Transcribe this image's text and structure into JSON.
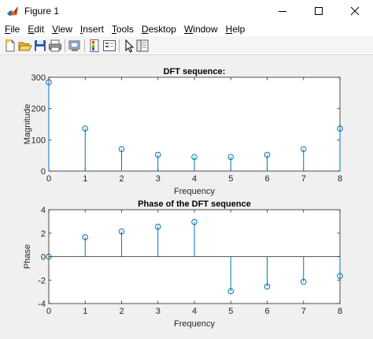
{
  "window": {
    "title": "Figure 1",
    "icon": "matlab-figure-icon"
  },
  "menu": [
    {
      "first": "F",
      "rest": "ile"
    },
    {
      "first": "E",
      "rest": "dit"
    },
    {
      "first": "V",
      "rest": "iew"
    },
    {
      "first": "I",
      "rest": "nsert"
    },
    {
      "first": "T",
      "rest": "ools"
    },
    {
      "first": "D",
      "rest": "esktop"
    },
    {
      "first": "W",
      "rest": "indow"
    },
    {
      "first": "H",
      "rest": "elp"
    }
  ],
  "toolbar": {
    "buttons": [
      "new-figure-icon",
      "open-file-icon",
      "save-icon",
      "print-icon",
      "link-plot-icon",
      "insert-colorbar-icon",
      "insert-legend-icon",
      "edit-plot-icon",
      "property-inspector-icon"
    ]
  },
  "colors": {
    "stem": "#0072BD",
    "axes_bg": "#ffffff",
    "figure_bg": "#f0f0f0"
  },
  "chart_data": [
    {
      "type": "stem",
      "title": "DFT sequence:",
      "xlabel": "Frequency",
      "ylabel": "Magnitude",
      "x": [
        0,
        1,
        2,
        3,
        4,
        5,
        6,
        7,
        8
      ],
      "values": [
        284,
        136,
        70,
        52,
        45,
        45,
        52,
        70,
        136
      ],
      "xlim": [
        0,
        8
      ],
      "ylim": [
        0,
        300
      ],
      "xticks": [
        "0",
        "1",
        "2",
        "3",
        "4",
        "5",
        "6",
        "7",
        "8"
      ],
      "yticks": [
        "0",
        "100",
        "200",
        "300"
      ],
      "ytick_values": [
        0,
        100,
        200,
        300
      ]
    },
    {
      "type": "stem",
      "title": "Phase of the DFT sequence",
      "xlabel": "Frequency",
      "ylabel": "Phase",
      "x": [
        0,
        1,
        2,
        3,
        4,
        5,
        6,
        7,
        8
      ],
      "values": [
        0,
        1.65,
        2.15,
        2.55,
        2.95,
        -2.95,
        -2.55,
        -2.15,
        -1.65
      ],
      "xlim": [
        0,
        8
      ],
      "ylim": [
        -4,
        4
      ],
      "xticks": [
        "0",
        "1",
        "2",
        "3",
        "4",
        "5",
        "6",
        "7",
        "8"
      ],
      "yticks": [
        "-4",
        "-2",
        "0",
        "2",
        "4"
      ],
      "ytick_values": [
        -4,
        -2,
        0,
        2,
        4
      ]
    }
  ]
}
